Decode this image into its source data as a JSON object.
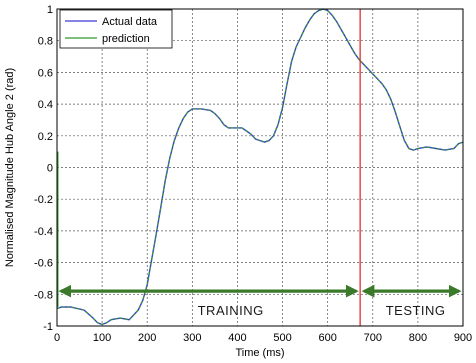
{
  "chart_data": {
    "type": "line",
    "xlabel": "Time (ms)",
    "ylabel": "Normalised Magnitude Hub Angle 2 (rad)",
    "xlim": [
      0,
      900
    ],
    "ylim": [
      -1,
      1
    ],
    "x_ticks": [
      "0",
      "100",
      "200",
      "300",
      "400",
      "500",
      "600",
      "700",
      "800",
      "900"
    ],
    "y_ticks": [
      "-1",
      "-0.8",
      "-0.6",
      "-0.4",
      "-0.2",
      "0",
      "0.2",
      "0.4",
      "0.6",
      "0.8",
      "1"
    ],
    "grid": true,
    "legend_position": "top-left",
    "series": [
      {
        "name": "Actual data",
        "color": "#3a3ad6",
        "x": [
          0,
          10,
          30,
          60,
          80,
          90,
          100,
          110,
          120,
          140,
          160,
          180,
          190,
          200,
          210,
          220,
          230,
          240,
          250,
          260,
          270,
          280,
          290,
          300,
          320,
          340,
          350,
          360,
          370,
          380,
          390,
          400,
          410,
          420,
          430,
          440,
          450,
          460,
          470,
          480,
          490,
          500,
          510,
          520,
          530,
          540,
          550,
          560,
          570,
          580,
          590,
          600,
          610,
          620,
          630,
          640,
          650,
          660,
          670,
          680,
          690,
          700,
          710,
          720,
          730,
          740,
          750,
          760,
          770,
          780,
          790,
          800,
          820,
          840,
          860,
          880,
          890,
          900
        ],
        "y": [
          -0.89,
          -0.88,
          -0.88,
          -0.9,
          -0.95,
          -0.98,
          -0.99,
          -0.98,
          -0.96,
          -0.95,
          -0.96,
          -0.9,
          -0.84,
          -0.74,
          -0.58,
          -0.42,
          -0.25,
          -0.08,
          0.06,
          0.17,
          0.25,
          0.31,
          0.35,
          0.37,
          0.37,
          0.36,
          0.34,
          0.31,
          0.27,
          0.25,
          0.25,
          0.25,
          0.25,
          0.23,
          0.21,
          0.18,
          0.17,
          0.16,
          0.17,
          0.2,
          0.27,
          0.38,
          0.53,
          0.67,
          0.76,
          0.82,
          0.88,
          0.93,
          0.97,
          0.99,
          1.0,
          0.99,
          0.96,
          0.92,
          0.87,
          0.82,
          0.77,
          0.72,
          0.68,
          0.65,
          0.62,
          0.59,
          0.56,
          0.53,
          0.49,
          0.43,
          0.35,
          0.26,
          0.17,
          0.12,
          0.11,
          0.12,
          0.13,
          0.12,
          0.11,
          0.12,
          0.15,
          0.16
        ]
      },
      {
        "name": "prediction",
        "color": "#2e9a2e",
        "x": [
          0,
          10,
          30,
          60,
          80,
          90,
          100,
          110,
          120,
          140,
          160,
          180,
          190,
          200,
          210,
          220,
          230,
          240,
          250,
          260,
          270,
          280,
          290,
          300,
          320,
          340,
          350,
          360,
          370,
          380,
          390,
          400,
          410,
          420,
          430,
          440,
          450,
          460,
          470,
          480,
          490,
          500,
          510,
          520,
          530,
          540,
          550,
          560,
          570,
          580,
          590,
          600,
          610,
          620,
          630,
          640,
          650,
          660,
          670,
          680,
          690,
          700,
          710,
          720,
          730,
          740,
          750,
          760,
          770,
          780,
          790,
          800,
          820,
          840,
          860,
          880,
          890,
          900
        ],
        "y": [
          -0.89,
          -0.88,
          -0.88,
          -0.9,
          -0.95,
          -0.98,
          -0.99,
          -0.98,
          -0.96,
          -0.95,
          -0.96,
          -0.9,
          -0.84,
          -0.74,
          -0.58,
          -0.42,
          -0.25,
          -0.08,
          0.06,
          0.17,
          0.25,
          0.31,
          0.35,
          0.37,
          0.37,
          0.36,
          0.34,
          0.31,
          0.27,
          0.25,
          0.25,
          0.25,
          0.25,
          0.23,
          0.21,
          0.18,
          0.17,
          0.16,
          0.17,
          0.2,
          0.27,
          0.38,
          0.53,
          0.67,
          0.76,
          0.82,
          0.88,
          0.93,
          0.97,
          0.99,
          1.0,
          0.99,
          0.96,
          0.92,
          0.87,
          0.82,
          0.77,
          0.72,
          0.68,
          0.65,
          0.62,
          0.59,
          0.56,
          0.53,
          0.49,
          0.43,
          0.35,
          0.26,
          0.17,
          0.12,
          0.11,
          0.12,
          0.13,
          0.12,
          0.11,
          0.12,
          0.15,
          0.16
        ]
      }
    ],
    "split_marker": {
      "x": 672,
      "color": "#e03030"
    },
    "annotations": [
      {
        "text": "TRAINING",
        "x": 385,
        "y": -0.9,
        "arrow_from": 0,
        "arrow_to": 672,
        "arrow_y": -0.78,
        "color": "#3a7a2a"
      },
      {
        "text": "TESTING",
        "x": 795,
        "y": -0.9,
        "arrow_from": 672,
        "arrow_to": 900,
        "arrow_y": -0.78,
        "color": "#3a7a2a"
      }
    ]
  }
}
